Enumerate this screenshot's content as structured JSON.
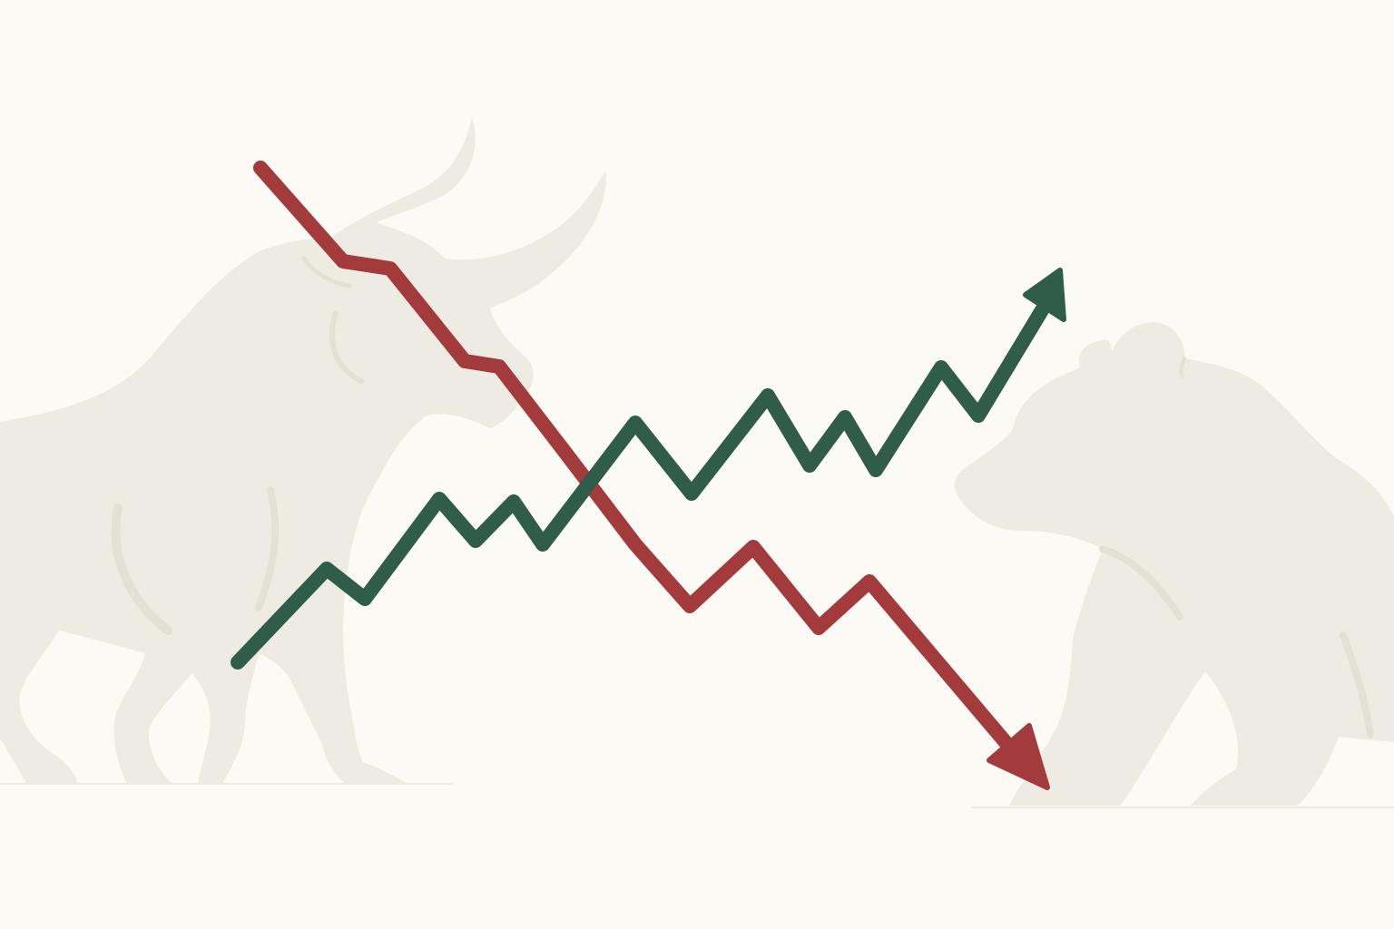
{
  "scene": {
    "description_type": "illustration",
    "background_color": "#fcfaf5",
    "silhouette_color": "#eeebe2",
    "silhouette_shade_color": "#e4e0d4",
    "figures": [
      {
        "name": "bull-silhouette",
        "position": "left"
      },
      {
        "name": "bear-silhouette",
        "position": "right"
      }
    ],
    "trend_lines": [
      {
        "name": "uptrend-line",
        "direction": "up",
        "color": "#2f5d4a"
      },
      {
        "name": "downtrend-line",
        "direction": "down",
        "color": "#a33a3c"
      }
    ]
  }
}
